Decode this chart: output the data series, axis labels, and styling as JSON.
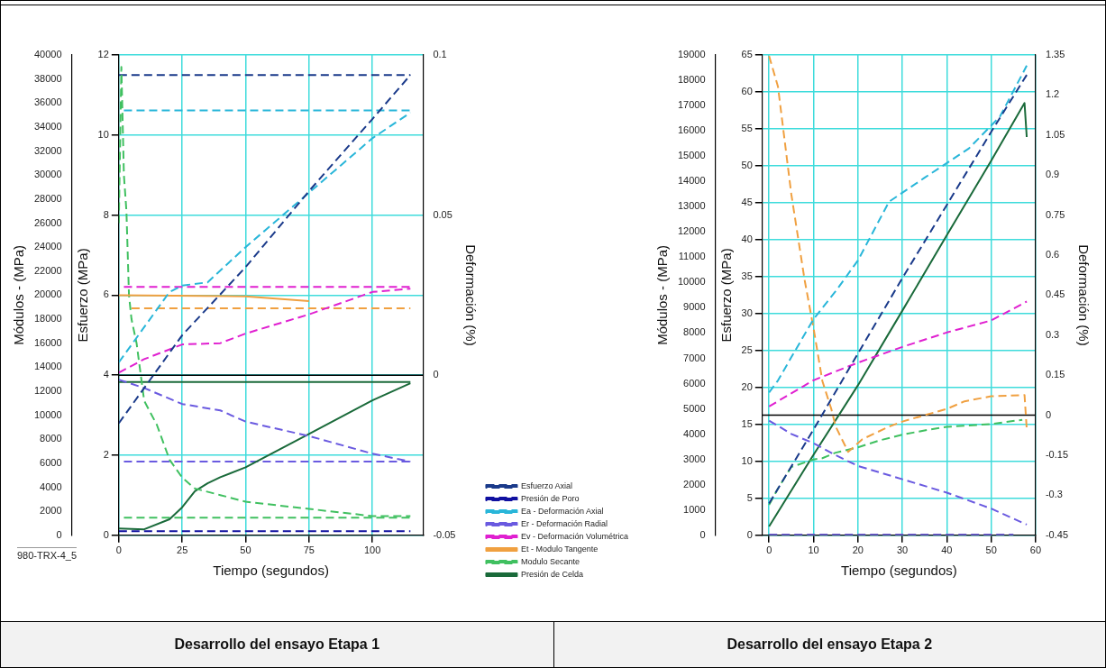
{
  "chart_data": [
    {
      "type": "line",
      "xlabel": "Tiempo (segundos)",
      "ylabel": "Esfuerzo (MPa)",
      "y2label": "Deformación (%)",
      "y3label": "Módulos - (MPa)",
      "xlim": [
        0,
        120
      ],
      "xticks": [
        0,
        25,
        50,
        75,
        100
      ],
      "ylim": [
        0,
        12
      ],
      "yticks": [
        0,
        2,
        4,
        6,
        8,
        10,
        12
      ],
      "y2lim": [
        -0.05,
        0.1
      ],
      "y2ticks": [
        -0.05,
        0,
        0.05,
        0.1
      ],
      "y3lim": [
        0,
        40000
      ],
      "y3ticks": [
        0,
        2000,
        4000,
        6000,
        8000,
        10000,
        12000,
        14000,
        16000,
        18000,
        20000,
        22000,
        24000,
        26000,
        28000,
        30000,
        32000,
        34000,
        36000,
        38000,
        40000
      ],
      "grid": true,
      "legend": "bottom right",
      "marker": "none",
      "ref_lines": [
        {
          "axis": "y2",
          "value": 0,
          "color": "#000000"
        }
      ],
      "annotations": [
        "980-TRX-4_5",
        "Desarrollo del ensayo Etapa 1"
      ],
      "series": [
        {
          "name": "Esfuerzo Axial",
          "color": "#1a3a8a",
          "line_style": "dashed",
          "x": [
            0,
            25,
            50,
            75,
            100,
            115
          ],
          "values": [
            2.8,
            5,
            6.7,
            8.6,
            10.4,
            11.5
          ]
        },
        {
          "name": "Presión de Poro",
          "color": "#1010a0",
          "line_style": "dashed",
          "x": [
            0,
            115
          ],
          "values": [
            0.1,
            0.1
          ]
        },
        {
          "name": "Ea - Deformación Axial",
          "color": "#29b6d9",
          "line_style": "dashed",
          "axis": "y2",
          "x": [
            0,
            10,
            20,
            25,
            35,
            50,
            75,
            100,
            115
          ],
          "values": [
            0.004,
            0.015,
            0.026,
            0.028,
            0.029,
            0.04,
            0.057,
            0.074,
            0.082
          ]
        },
        {
          "name": "Er - Deformación Radial",
          "color": "#6a5ae0",
          "line_style": "dashed",
          "axis": "y2",
          "x": [
            0,
            10,
            25,
            40,
            50,
            75,
            100,
            115
          ],
          "values": [
            -0.0014,
            -0.004,
            -0.009,
            -0.011,
            -0.0145,
            -0.019,
            -0.0245,
            -0.027
          ]
        },
        {
          "name": "Ev - Deformación Volumétrica",
          "color": "#e020d0",
          "line_style": "dashed",
          "axis": "y2",
          "x": [
            0,
            10,
            25,
            40,
            50,
            75,
            100,
            115
          ],
          "values": [
            0.0008,
            0.005,
            0.0096,
            0.01,
            0.013,
            0.019,
            0.026,
            0.027
          ]
        },
        {
          "name": "Et - Modulo Tangente",
          "color": "#f0a040",
          "line_style": "solid",
          "axis": "y3",
          "x": [
            0,
            50,
            75
          ],
          "values": [
            20000,
            19900,
            19500
          ]
        },
        {
          "name": "Modulo Secante",
          "color": "#40c060",
          "line_style": "dashed",
          "axis": "y3",
          "x": [
            0,
            1,
            2,
            3,
            4,
            5,
            7,
            10,
            15,
            20,
            25,
            30,
            40,
            50,
            75,
            100,
            115
          ],
          "values": [
            26000,
            39000,
            30000,
            27000,
            20000,
            18000,
            16000,
            11200,
            9200,
            6300,
            4800,
            3900,
            3350,
            2800,
            2200,
            1600,
            1600
          ]
        },
        {
          "name": "Presión de Celda",
          "color": "#1a6a3a",
          "line_style": "solid",
          "x": [
            0,
            10,
            20,
            25,
            30,
            35,
            40,
            50,
            75,
            100,
            115
          ],
          "values": [
            0.17,
            0.15,
            0.4,
            0.7,
            1.1,
            1.3,
            1.45,
            1.7,
            2.53,
            3.37,
            3.8
          ]
        },
        {
          "color": "#1a3a8a",
          "line_style": "dashed",
          "x": [
            0,
            115
          ],
          "values": [
            11.5,
            11.5
          ]
        },
        {
          "color": "#29b6d9",
          "line_style": "dashed",
          "axis": "y2",
          "x": [
            2,
            115
          ],
          "values": [
            0.0827,
            0.0827
          ]
        },
        {
          "color": "#e020d0",
          "line_style": "dashed",
          "axis": "y2",
          "x": [
            2,
            115
          ],
          "values": [
            0.0276,
            0.0276
          ]
        },
        {
          "color": "#f0a040",
          "line_style": "dashed",
          "axis": "y3",
          "x": [
            5,
            115
          ],
          "values": [
            18900,
            18900
          ]
        },
        {
          "color": "#6a5ae0",
          "line_style": "dashed",
          "axis": "y2",
          "x": [
            2,
            115
          ],
          "values": [
            -0.027,
            -0.027
          ]
        },
        {
          "color": "#40c060",
          "line_style": "dashed",
          "axis": "y3",
          "x": [
            2,
            115
          ],
          "values": [
            1460,
            1460
          ]
        },
        {
          "color": "#1a6a3a",
          "line_style": "solid",
          "x": [
            0,
            115
          ],
          "values": [
            3.83,
            3.83
          ]
        }
      ]
    },
    {
      "type": "line",
      "xlabel": "Tiempo (segundos)",
      "ylabel": "Esfuerzo (MPa)",
      "y2label": "Deformación (%)",
      "y3label": "Módulos - (MPa)",
      "xlim": [
        -1.5,
        60
      ],
      "xticks": [
        0,
        10,
        20,
        30,
        40,
        50,
        60
      ],
      "ylim": [
        0,
        65
      ],
      "yticks": [
        0,
        5,
        10,
        15,
        20,
        25,
        30,
        35,
        40,
        45,
        50,
        55,
        60,
        65
      ],
      "y2lim": [
        -0.45,
        1.35
      ],
      "y2ticks": [
        -0.45,
        -0.3,
        -0.15,
        0,
        0.15,
        0.3,
        0.45,
        0.6,
        0.75,
        0.9,
        1.05,
        1.2,
        1.35
      ],
      "y3lim": [
        0,
        19000
      ],
      "y3ticks": [
        0,
        1000,
        2000,
        3000,
        4000,
        5000,
        6000,
        7000,
        8000,
        9000,
        10000,
        11000,
        12000,
        13000,
        14000,
        15000,
        16000,
        17000,
        18000,
        19000
      ],
      "grid": true,
      "marker": "none",
      "ref_lines": [
        {
          "axis": "y2",
          "value": 0,
          "color": "#000000"
        }
      ],
      "annotations": [
        "Desarrollo del ensayo Etapa 2"
      ],
      "series": [
        {
          "color": "#1a3a8a",
          "line_style": "dashed",
          "x": [
            0,
            10,
            20,
            30,
            40,
            50,
            58
          ],
          "values": [
            4.3,
            14.3,
            24.6,
            34.8,
            44.7,
            54.6,
            62.3
          ]
        },
        {
          "color": "#6a5acd",
          "line_style": "dashed",
          "x": [
            0,
            55
          ],
          "values": [
            0.1,
            0.1
          ]
        },
        {
          "color": "#29b6d9",
          "line_style": "dashed",
          "axis": "y2",
          "x": [
            0,
            2,
            5,
            10,
            15,
            20,
            27,
            35,
            45,
            52,
            58
          ],
          "values": [
            0.085,
            0.13,
            0.217,
            0.36,
            0.465,
            0.58,
            0.8,
            0.89,
            1,
            1.12,
            1.31
          ]
        },
        {
          "color": "#6a5ae0",
          "line_style": "dashed",
          "axis": "y2",
          "x": [
            0,
            5,
            10,
            15,
            20,
            30,
            40,
            50,
            58
          ],
          "values": [
            -0.02,
            -0.07,
            -0.105,
            -0.15,
            -0.19,
            -0.24,
            -0.29,
            -0.35,
            -0.41
          ]
        },
        {
          "color": "#e020d0",
          "line_style": "dashed",
          "axis": "y2",
          "x": [
            0,
            10,
            15,
            20,
            30,
            40,
            50,
            58
          ],
          "values": [
            0.033,
            0.131,
            0.164,
            0.197,
            0.256,
            0.31,
            0.355,
            0.426
          ]
        },
        {
          "color": "#f0a040",
          "line_style": "dashed",
          "axis": "y3",
          "x": [
            0,
            2,
            5,
            8,
            10,
            12,
            14,
            15,
            17.8,
            21,
            27,
            30,
            40,
            44,
            50,
            57.5,
            58
          ],
          "values": [
            18960,
            17750,
            13500,
            10100,
            8200,
            6100,
            5000,
            4300,
            3300,
            3800,
            4300,
            4500,
            5000,
            5300,
            5500,
            5550,
            4200
          ]
        },
        {
          "color": "#40c060",
          "line_style": "dashed",
          "axis": "y3",
          "x": [
            0,
            2,
            5,
            10,
            12,
            15,
            20,
            25,
            30,
            35,
            40,
            50,
            57
          ],
          "values": [
            1200,
            1850,
            2700,
            3000,
            3050,
            3270,
            3480,
            3760,
            3980,
            4150,
            4290,
            4400,
            4570
          ]
        },
        {
          "color": "#1a6a3a",
          "line_style": "solid",
          "x": [
            0,
            10,
            20,
            30,
            40,
            50,
            57.5,
            58
          ],
          "values": [
            1.2,
            10.9,
            20.3,
            30.4,
            40.6,
            50.7,
            58.5,
            53.9
          ]
        }
      ]
    }
  ]
}
